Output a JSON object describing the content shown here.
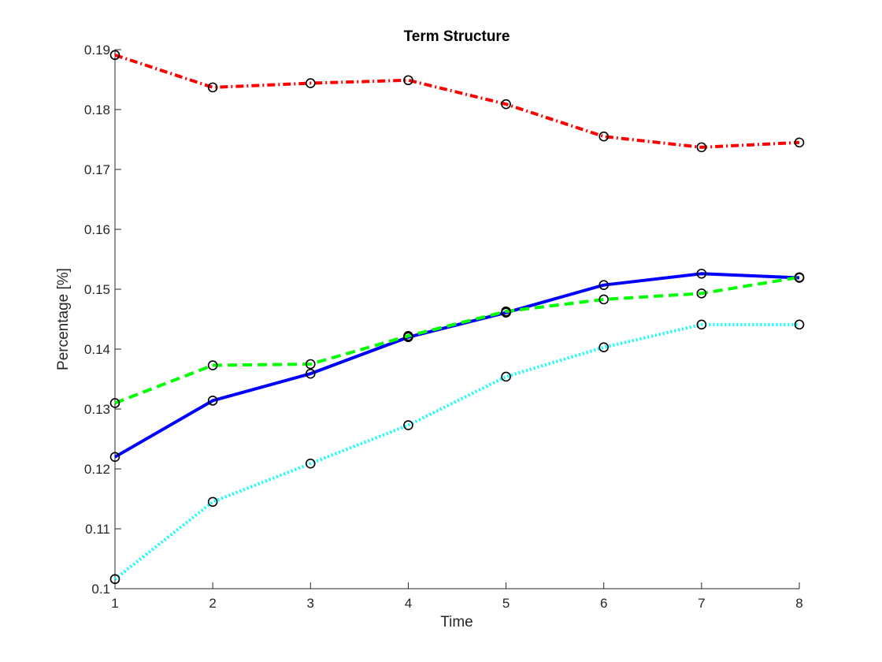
{
  "chart_data": {
    "type": "line",
    "title": "Term Structure",
    "xlabel": "Time",
    "ylabel": "Percentage [%]",
    "xlim": [
      1,
      8
    ],
    "ylim": [
      0.1,
      0.19
    ],
    "x_ticks": [
      "1",
      "2",
      "3",
      "4",
      "5",
      "6",
      "7",
      "8"
    ],
    "y_ticks": [
      "0.1",
      "0.11",
      "0.12",
      "0.13",
      "0.14",
      "0.15",
      "0.16",
      "0.17",
      "0.18",
      "0.19"
    ],
    "grid": false,
    "legend": "none",
    "marker": "circle",
    "marker_color": "#000000",
    "x": [
      1,
      2,
      3,
      4,
      5,
      6,
      7,
      8
    ],
    "series": [
      {
        "color": "#ff0000",
        "line_style": "dash-dot",
        "values": [
          0.1891,
          0.1837,
          0.1844,
          0.1849,
          0.1809,
          0.1755,
          0.1737,
          0.1745
        ]
      },
      {
        "color": "#0000ff",
        "line_style": "solid",
        "values": [
          0.122,
          0.1314,
          0.1359,
          0.142,
          0.1461,
          0.1507,
          0.1526,
          0.1519
        ]
      },
      {
        "color": "#00ff00",
        "line_style": "dashed",
        "values": [
          0.131,
          0.1373,
          0.1375,
          0.1422,
          0.1463,
          0.1483,
          0.1493,
          0.152
        ]
      },
      {
        "color": "#00ffff",
        "line_style": "dotted",
        "values": [
          0.1016,
          0.1145,
          0.1209,
          0.1273,
          0.1354,
          0.1403,
          0.1441,
          0.1441
        ]
      }
    ]
  }
}
